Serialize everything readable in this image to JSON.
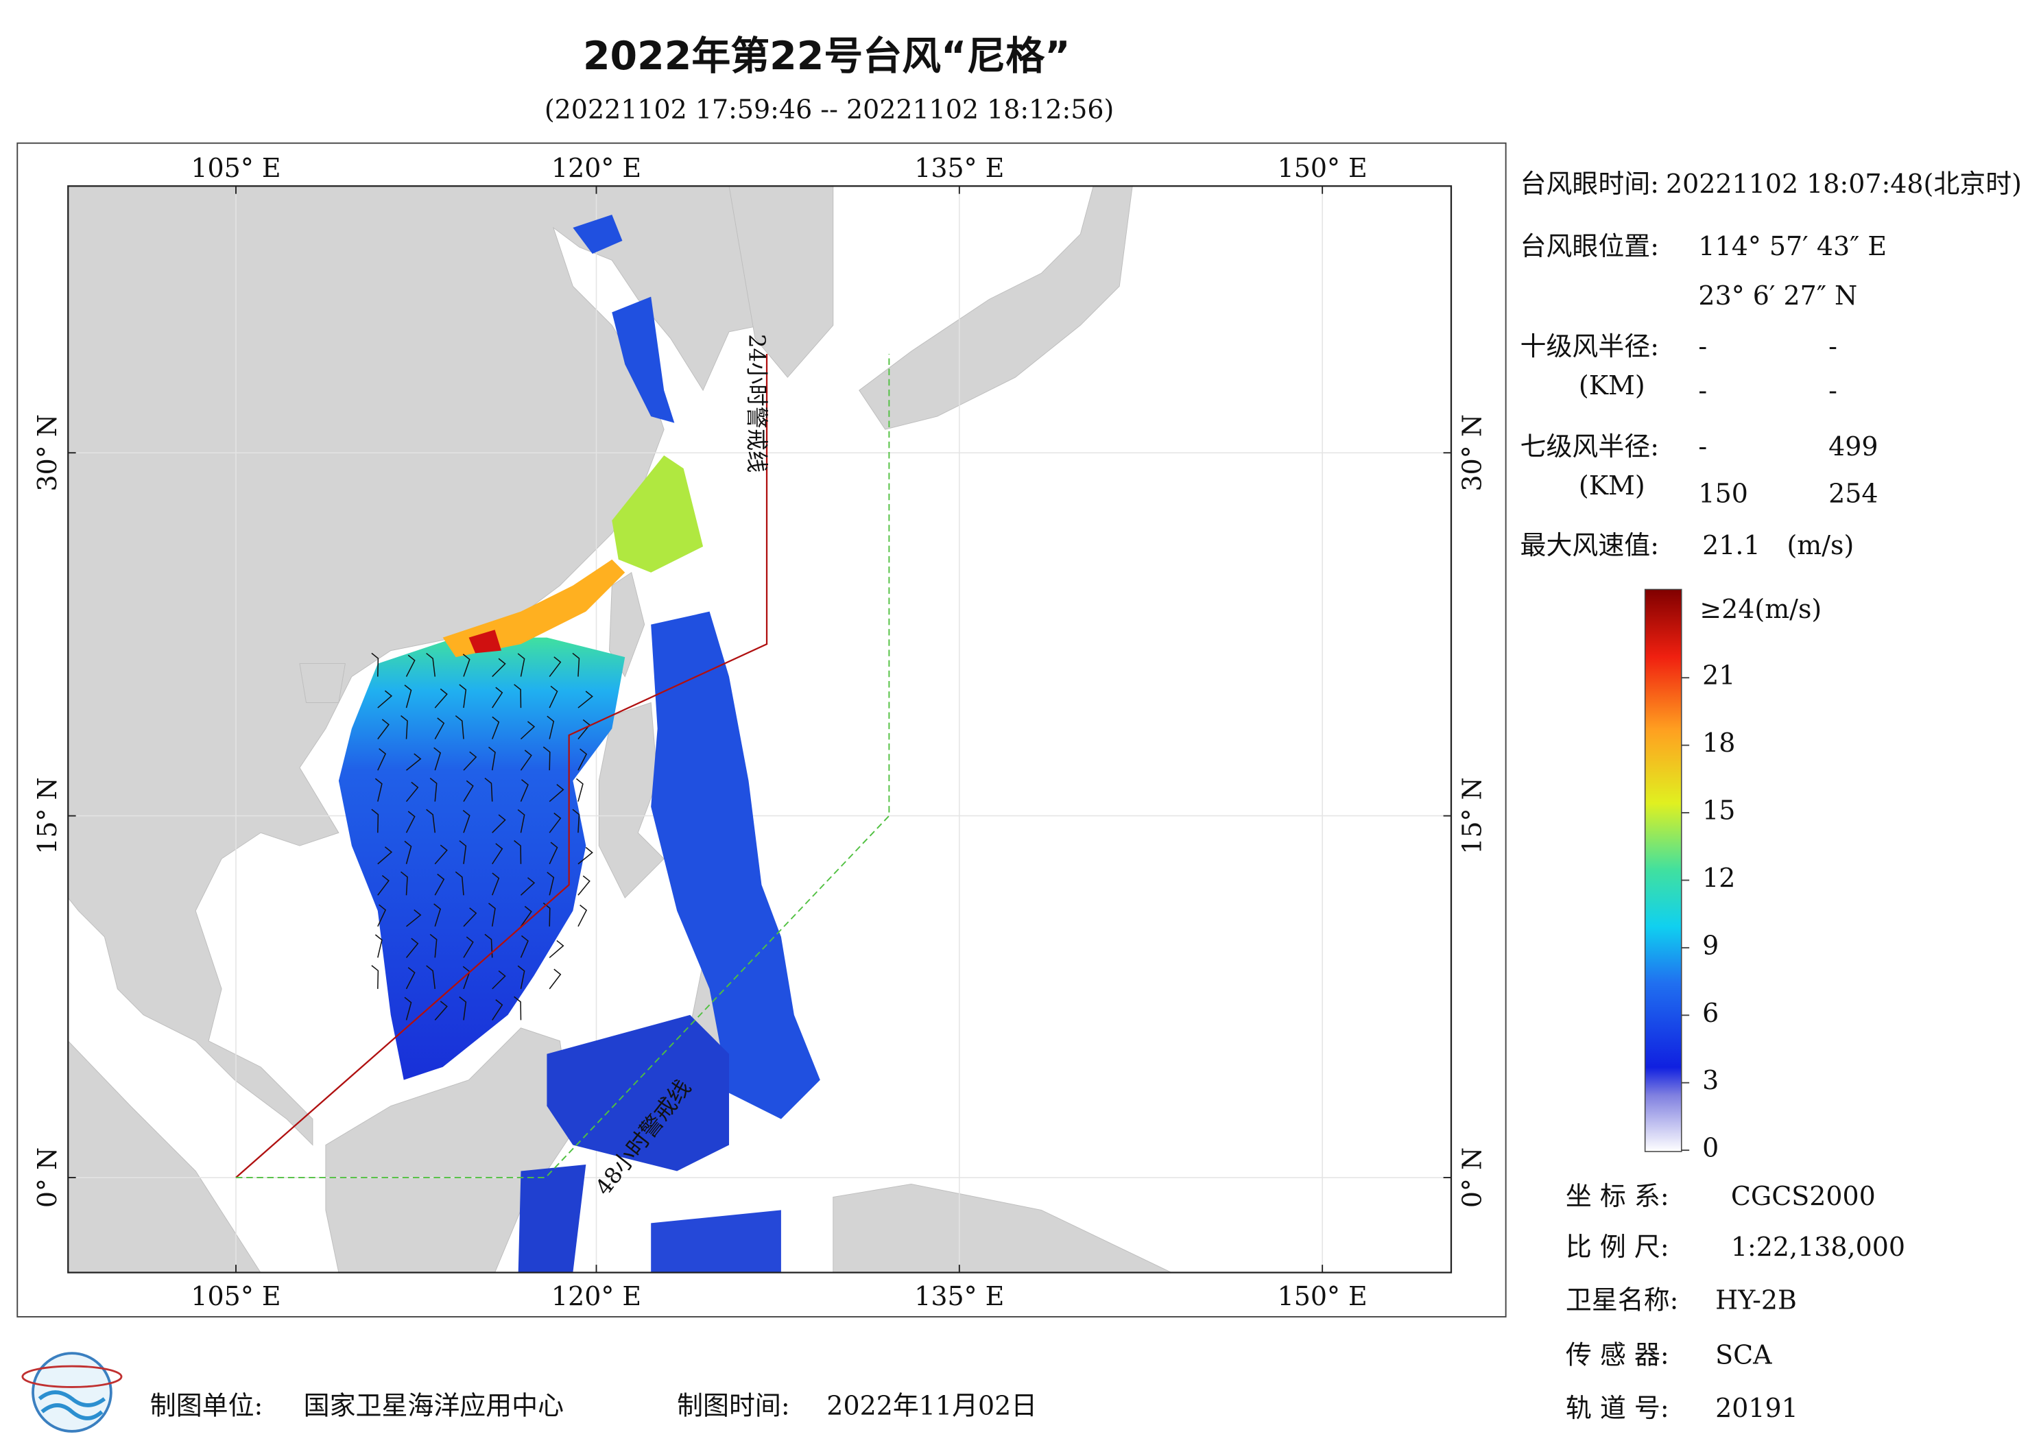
{
  "header": {
    "title": "2022年第22号台风“尼格”",
    "subtitle": "(20221102 17:59:46 -- 20221102 18:12:56)"
  },
  "map": {
    "lon_labels": [
      "105° E",
      "120° E",
      "135° E",
      "150° E"
    ],
    "lat_labels": [
      "30° N",
      "15° N",
      "0° N"
    ],
    "warning_lines": [
      "24小时警戒线",
      "48小时警戒线"
    ]
  },
  "info": {
    "eye_time_label": "台风眼时间:",
    "eye_time": "20221102 18:07:48(北京时)",
    "eye_pos_label": "台风眼位置:",
    "eye_lon": "114° 57′ 43″ E",
    "eye_lat": "23° 6′ 27″ N",
    "r10_label": "十级风半径:",
    "r10_unit": "(KM)",
    "r10": [
      [
        "-",
        "-"
      ],
      [
        "-",
        "-"
      ]
    ],
    "r7_label": "七级风半径:",
    "r7_unit": "(KM)",
    "r7": [
      [
        "-",
        499
      ],
      [
        150,
        254
      ]
    ],
    "max_wind_label": "最大风速值:",
    "max_wind": 21.1,
    "max_wind_unit": "(m/s)"
  },
  "colorbar": {
    "top_label": "≥24(m/s)",
    "clim": [
      0,
      24
    ],
    "ticks": [
      21,
      18,
      15,
      12,
      9,
      6,
      3,
      0
    ]
  },
  "meta": {
    "rows": [
      [
        "坐 标 系:",
        "CGCS2000"
      ],
      [
        "比 例 尺:",
        "1:22,138,000"
      ],
      [
        "卫星名称:",
        "HY-2B"
      ],
      [
        "传 感 器:",
        "SCA"
      ],
      [
        "轨 道 号:",
        20191
      ]
    ]
  },
  "footer": {
    "unit_label": "制图单位:",
    "unit": "国家卫星海洋应用中心",
    "date_label": "制图时间:",
    "date": "2022年11月02日"
  }
}
